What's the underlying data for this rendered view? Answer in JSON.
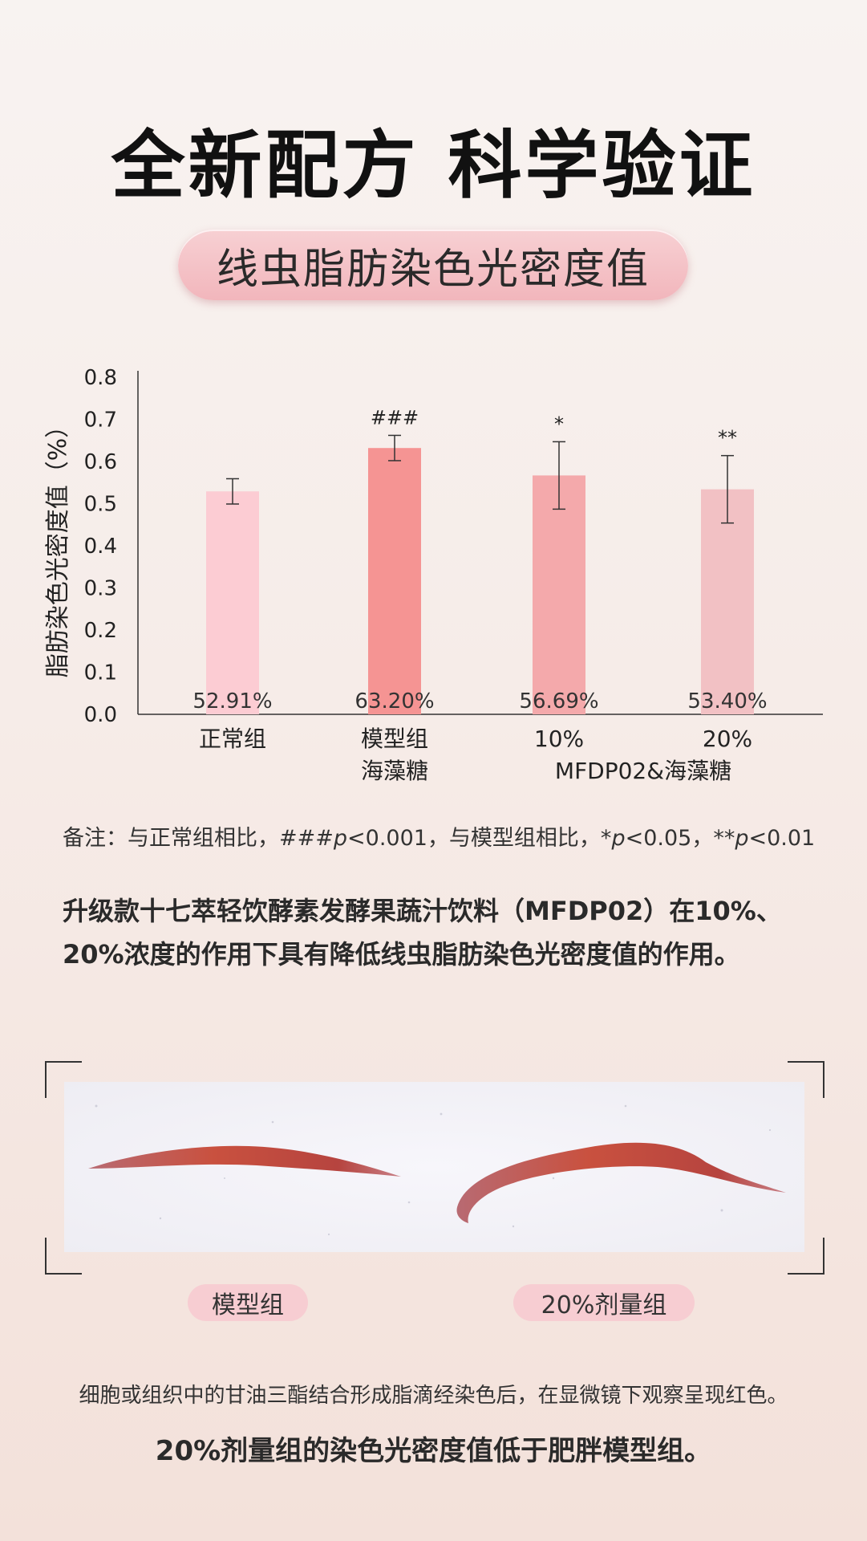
{
  "title": "全新配方 科学验证",
  "subtitle": "线虫脂肪染色光密度值",
  "chart_data": {
    "type": "bar",
    "ylabel": "脂肪染色光密度值（%）",
    "ylim": [
      0,
      0.8
    ],
    "yticks": [
      "0.0",
      "0.1",
      "0.2",
      "0.3",
      "0.4",
      "0.5",
      "0.6",
      "0.7",
      "0.8"
    ],
    "categories": [
      "正常组",
      "模型组",
      "10%",
      "20%"
    ],
    "values": [
      0.5291,
      0.632,
      0.5669,
      0.534
    ],
    "errors": [
      0.03,
      0.03,
      0.08,
      0.08
    ],
    "value_labels": [
      "52.91%",
      "63.20%",
      "56.69%",
      "53.40%"
    ],
    "significance": [
      "",
      "###",
      "*",
      "**"
    ],
    "group_labels": [
      {
        "text": "海藻糖",
        "under": [
          1
        ]
      },
      {
        "text": "MFDP02&海藻糖",
        "under": [
          2,
          3
        ]
      }
    ],
    "colors": [
      "#fcccd3",
      "#f59493",
      "#f4a9ab",
      "#f2c1c4"
    ],
    "grid": false,
    "legend": "none"
  },
  "note": {
    "prefix": "备注：与正常组相比，###",
    "p1": "p",
    "mid": "<0.001，与模型组相比，*",
    "p2": "p",
    "mid2": "<0.05，**",
    "p3": "p",
    "suffix": "<0.01"
  },
  "description": "升级款十七萃轻饮酵素发酵果蔬汁饮料（MFDP02）在10%、20%浓度的作用下具有降低线虫脂肪染色光密度值的作用。",
  "image_tags": {
    "left": "模型组",
    "right": "20%剂量组"
  },
  "footer": {
    "line1": "细胞或组织中的甘油三酯结合形成脂滴经染色后，在显微镜下观察呈现红色。",
    "line2": "20%剂量组的染色光密度值低于肥胖模型组。"
  }
}
